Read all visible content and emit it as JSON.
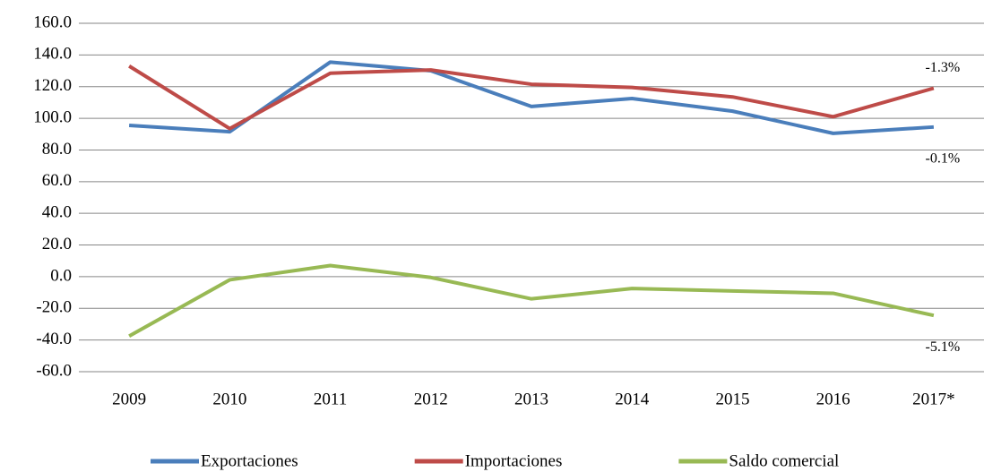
{
  "chart_data": {
    "type": "line",
    "categories": [
      "2009",
      "2010",
      "2011",
      "2012",
      "2013",
      "2014",
      "2015",
      "2016",
      "2017*"
    ],
    "series": [
      {
        "name": "Exportaciones",
        "color": "#4a7ebb",
        "values": [
          95.5,
          91.5,
          135.5,
          130,
          107.5,
          112.5,
          104.5,
          90.5,
          94.5
        ],
        "annotation": "-0.1%"
      },
      {
        "name": "Importaciones",
        "color": "#be4b48",
        "values": [
          133,
          93.5,
          128.5,
          130.5,
          121.5,
          119.5,
          113.5,
          101,
          119
        ],
        "annotation": "-1.3%"
      },
      {
        "name": "Saldo comercial",
        "color": "#98b954",
        "values": [
          -37.5,
          -2,
          7,
          -0.5,
          -14,
          -7.5,
          -9,
          -10.5,
          -24.5
        ],
        "annotation": "-5.1%"
      }
    ],
    "ylim": [
      -60,
      160
    ],
    "yticks": [
      {
        "value": -60,
        "label": "-60.0"
      },
      {
        "value": -40,
        "label": "-40.0"
      },
      {
        "value": -20,
        "label": "-20.0"
      },
      {
        "value": 0,
        "label": "0.0"
      },
      {
        "value": 20,
        "label": "20.0"
      },
      {
        "value": 40,
        "label": "40.0"
      },
      {
        "value": 60,
        "label": "60.0"
      },
      {
        "value": 80,
        "label": "80.0"
      },
      {
        "value": 100,
        "label": "100.0"
      },
      {
        "value": 120,
        "label": "120.0"
      },
      {
        "value": 140,
        "label": "140.0"
      },
      {
        "value": 160,
        "label": "160.0"
      }
    ],
    "grid": true,
    "legend": "bottom"
  }
}
